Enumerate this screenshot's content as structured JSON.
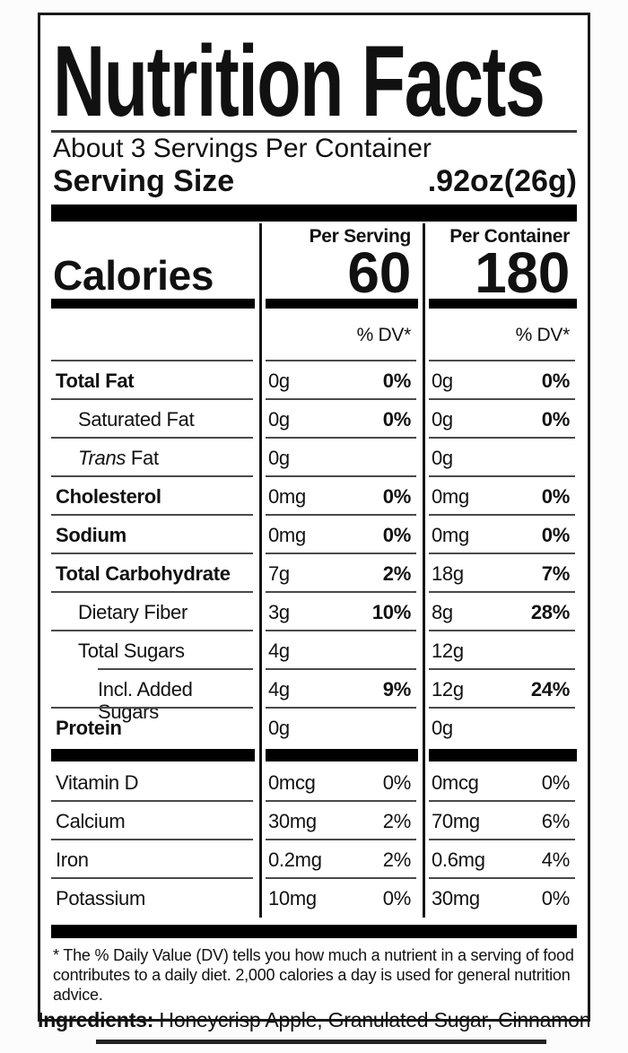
{
  "header": {
    "title": "Nutrition Facts",
    "servings_per_container": "About 3 Servings Per Container",
    "serving_size_label": "Serving Size",
    "serving_size_value": ".92oz(26g)"
  },
  "columns": {
    "per_serving_header": "Per Serving",
    "per_container_header": "Per Container",
    "dv_header": "% DV*"
  },
  "calories": {
    "label": "Calories",
    "per_serving": "60",
    "per_container": "180"
  },
  "nutrients": [
    {
      "name": "Total Fat",
      "per_serving": {
        "amount": "0g",
        "dv": "0%"
      },
      "per_container": {
        "amount": "0g",
        "dv": "0%"
      }
    },
    {
      "name": "Saturated Fat",
      "per_serving": {
        "amount": "0g",
        "dv": "0%"
      },
      "per_container": {
        "amount": "0g",
        "dv": "0%"
      }
    },
    {
      "name_italic": "Trans",
      "name": " Fat",
      "per_serving": {
        "amount": "0g"
      },
      "per_container": {
        "amount": "0g"
      }
    },
    {
      "name": "Cholesterol",
      "per_serving": {
        "amount": "0mg",
        "dv": "0%"
      },
      "per_container": {
        "amount": "0mg",
        "dv": "0%"
      }
    },
    {
      "name": "Sodium",
      "per_serving": {
        "amount": "0mg",
        "dv": "0%"
      },
      "per_container": {
        "amount": "0mg",
        "dv": "0%"
      }
    },
    {
      "name": "Total Carbohydrate",
      "per_serving": {
        "amount": "7g",
        "dv": "2%"
      },
      "per_container": {
        "amount": "18g",
        "dv": "7%"
      }
    },
    {
      "name": "Dietary Fiber",
      "per_serving": {
        "amount": "3g",
        "dv": "10%"
      },
      "per_container": {
        "amount": "8g",
        "dv": "28%"
      }
    },
    {
      "name": "Total Sugars",
      "per_serving": {
        "amount": "4g"
      },
      "per_container": {
        "amount": "12g"
      }
    },
    {
      "name": "Incl. Added Sugars",
      "per_serving": {
        "amount": "4g",
        "dv": "9%"
      },
      "per_container": {
        "amount": "12g",
        "dv": "24%"
      }
    },
    {
      "name": "Protein",
      "per_serving": {
        "amount": "0g"
      },
      "per_container": {
        "amount": "0g"
      }
    }
  ],
  "micronutrients": [
    {
      "name": "Vitamin D",
      "per_serving": {
        "amount": "0mcg",
        "dv": "0%"
      },
      "per_container": {
        "amount": "0mcg",
        "dv": "0%"
      }
    },
    {
      "name": "Calcium",
      "per_serving": {
        "amount": "30mg",
        "dv": "2%"
      },
      "per_container": {
        "amount": "70mg",
        "dv": "6%"
      }
    },
    {
      "name": "Iron",
      "per_serving": {
        "amount": "0.2mg",
        "dv": "2%"
      },
      "per_container": {
        "amount": "0.6mg",
        "dv": "4%"
      }
    },
    {
      "name": "Potassium",
      "per_serving": {
        "amount": "10mg",
        "dv": "0%"
      },
      "per_container": {
        "amount": "30mg",
        "dv": "0%"
      }
    }
  ],
  "footnote": "* The % Daily Value (DV) tells you how much a nutrient in a serving of food contributes to a daily diet. 2,000 calories a day is used for general nutrition advice.",
  "ingredients": {
    "label": "Ingredients:",
    "value": " Honeycrisp Apple, Granulated Sugar, Cinnamon"
  },
  "colors": {
    "text": "#111111",
    "separator_line": "#4a4a4a",
    "bar": "#000000",
    "border": "#1a1a1a",
    "background": "#ffffff"
  }
}
